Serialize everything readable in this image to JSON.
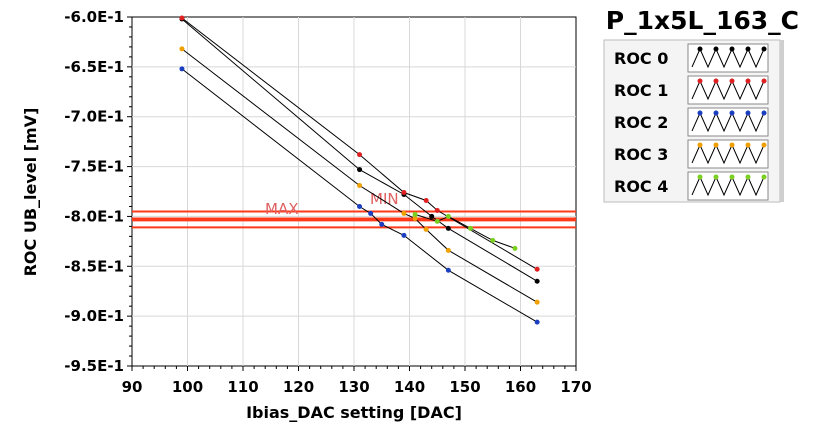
{
  "chart_data": {
    "type": "line",
    "title": "P_1x5L_163_C",
    "xlabel": "Ibias_DAC setting [DAC]",
    "ylabel": "ROC UB_level [mV]",
    "xlim": [
      90,
      170
    ],
    "ylim": [
      -0.95,
      -0.6
    ],
    "x_ticks": [
      90,
      100,
      110,
      120,
      130,
      140,
      150,
      160,
      170
    ],
    "x_tick_labels": [
      "90",
      "100",
      "110",
      "120",
      "130",
      "140",
      "150",
      "160",
      "170"
    ],
    "y_ticks": [
      -0.6,
      -0.65,
      -0.7,
      -0.75,
      -0.8,
      -0.85,
      -0.9,
      -0.95
    ],
    "y_tick_labels": [
      "-6.0E-1",
      "-6.5E-1",
      "-7.0E-1",
      "-7.5E-1",
      "-8.0E-1",
      "-8.5E-1",
      "-9.0E-1",
      "-9.5E-1"
    ],
    "grid": true,
    "legend_position": "top-right",
    "series": [
      {
        "name": "ROC 0",
        "color": "#000000",
        "points": [
          [
            99,
            -0.602
          ],
          [
            131,
            -0.753
          ],
          [
            139,
            -0.778
          ],
          [
            144,
            -0.8
          ],
          [
            147,
            -0.812
          ],
          [
            163,
            -0.865
          ]
        ]
      },
      {
        "name": "ROC 1",
        "color": "#e02020",
        "points": [
          [
            99,
            -0.601
          ],
          [
            131,
            -0.738
          ],
          [
            139,
            -0.776
          ],
          [
            143,
            -0.784
          ],
          [
            145,
            -0.794
          ],
          [
            163,
            -0.853
          ]
        ]
      },
      {
        "name": "ROC 2",
        "color": "#1a3fc0",
        "points": [
          [
            99,
            -0.652
          ],
          [
            131,
            -0.79
          ],
          [
            133,
            -0.797
          ],
          [
            135,
            -0.808
          ],
          [
            139,
            -0.819
          ],
          [
            147,
            -0.854
          ],
          [
            163,
            -0.906
          ]
        ]
      },
      {
        "name": "ROC 3",
        "color": "#f0a000",
        "points": [
          [
            99,
            -0.632
          ],
          [
            131,
            -0.769
          ],
          [
            139,
            -0.797
          ],
          [
            141,
            -0.802
          ],
          [
            143,
            -0.813
          ],
          [
            147,
            -0.834
          ],
          [
            163,
            -0.886
          ]
        ]
      },
      {
        "name": "ROC 4",
        "color": "#7ad020",
        "points": [
          [
            141,
            -0.798
          ],
          [
            145,
            -0.805
          ],
          [
            147,
            -0.8
          ],
          [
            151,
            -0.812
          ],
          [
            155,
            -0.824
          ],
          [
            159,
            -0.832
          ]
        ]
      }
    ],
    "reference_lines": [
      {
        "label": "MAX",
        "y": -0.795,
        "color": "#ff3a1a"
      },
      {
        "label": "MIN",
        "y": -0.804,
        "color": "#ff3a1a"
      }
    ]
  }
}
